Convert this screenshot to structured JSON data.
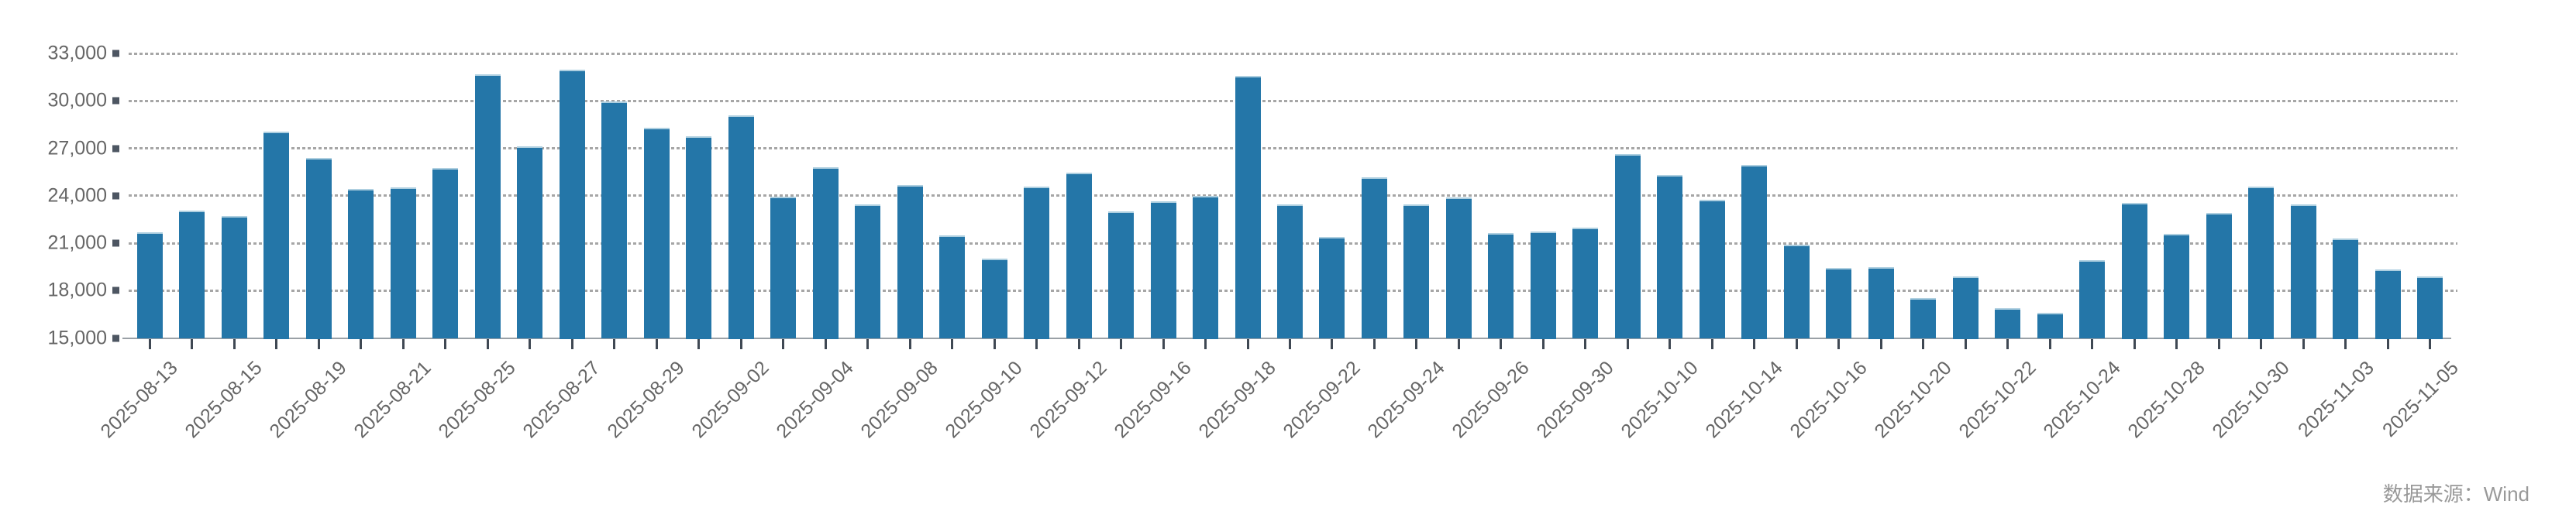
{
  "footer": {
    "source_label": "数据来源：Wind"
  },
  "chart_data": {
    "type": "bar",
    "title": "",
    "xlabel": "",
    "ylabel": "",
    "values": [
      21700,
      23050,
      22700,
      28050,
      26400,
      24450,
      24550,
      25750,
      31700,
      27100,
      31950,
      29950,
      28300,
      27750,
      29100,
      23950,
      25800,
      23450,
      24650,
      21500,
      20000,
      24600,
      25450,
      23000,
      23650,
      24000,
      31600,
      23450,
      21400,
      25150,
      23450,
      23900,
      21650,
      21750,
      22000,
      26650,
      25300,
      23750,
      25950,
      20900,
      19450,
      19500,
      17500,
      18900,
      16900,
      16600,
      19900,
      23550,
      21600,
      22900,
      24600,
      23450,
      21300,
      19350,
      18900
    ],
    "tick_labels": [
      "2025-08-13",
      "2025-08-15",
      "2025-08-19",
      "2025-08-21",
      "2025-08-25",
      "2025-08-27",
      "2025-08-29",
      "2025-09-02",
      "2025-09-04",
      "2025-09-08",
      "2025-09-10",
      "2025-09-12",
      "2025-09-16",
      "2025-09-18",
      "2025-09-22",
      "2025-09-24",
      "2025-09-26",
      "2025-09-30",
      "2025-10-10",
      "2025-10-14",
      "2025-10-16",
      "2025-10-20",
      "2025-10-22",
      "2025-10-24",
      "2025-10-28",
      "2025-10-30",
      "2025-11-03",
      "2025-11-05"
    ],
    "tick_every": 2,
    "ylim": [
      15000,
      33000
    ],
    "ytick_step": 3000,
    "ytick_labels": [
      "15,000",
      "18,000",
      "21,000",
      "24,000",
      "27,000",
      "30,000",
      "33,000"
    ],
    "grid": "horizontal dotted",
    "legend": "none",
    "bar_color": "#2476a8",
    "bar_cap_color": "#aecfe0",
    "gridline_color": "#a6a6a6",
    "axis_text_color": "#666666",
    "source_text_color": "#999999"
  }
}
